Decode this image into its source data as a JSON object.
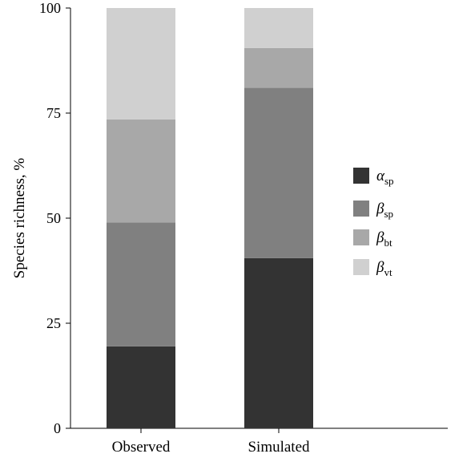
{
  "chart_data": {
    "type": "bar",
    "stacked": true,
    "categories": [
      "Observed",
      "Simulated"
    ],
    "ylabel": "Species richness, %",
    "ylim": [
      0,
      100
    ],
    "yticks": [
      0,
      25,
      50,
      75,
      100
    ],
    "grid": false,
    "legend_position": "right",
    "series": [
      {
        "symbol": "α",
        "subscript": "sp",
        "color": "#333333",
        "values": [
          19.5,
          40.5
        ]
      },
      {
        "symbol": "β",
        "subscript": "sp",
        "color": "#808080",
        "values": [
          29.5,
          40.5
        ]
      },
      {
        "symbol": "β",
        "subscript": "bt",
        "color": "#a8a8a8",
        "values": [
          24.5,
          9.5
        ]
      },
      {
        "symbol": "β",
        "subscript": "vt",
        "color": "#d0d0d0",
        "values": [
          26.5,
          9.5
        ]
      }
    ]
  }
}
